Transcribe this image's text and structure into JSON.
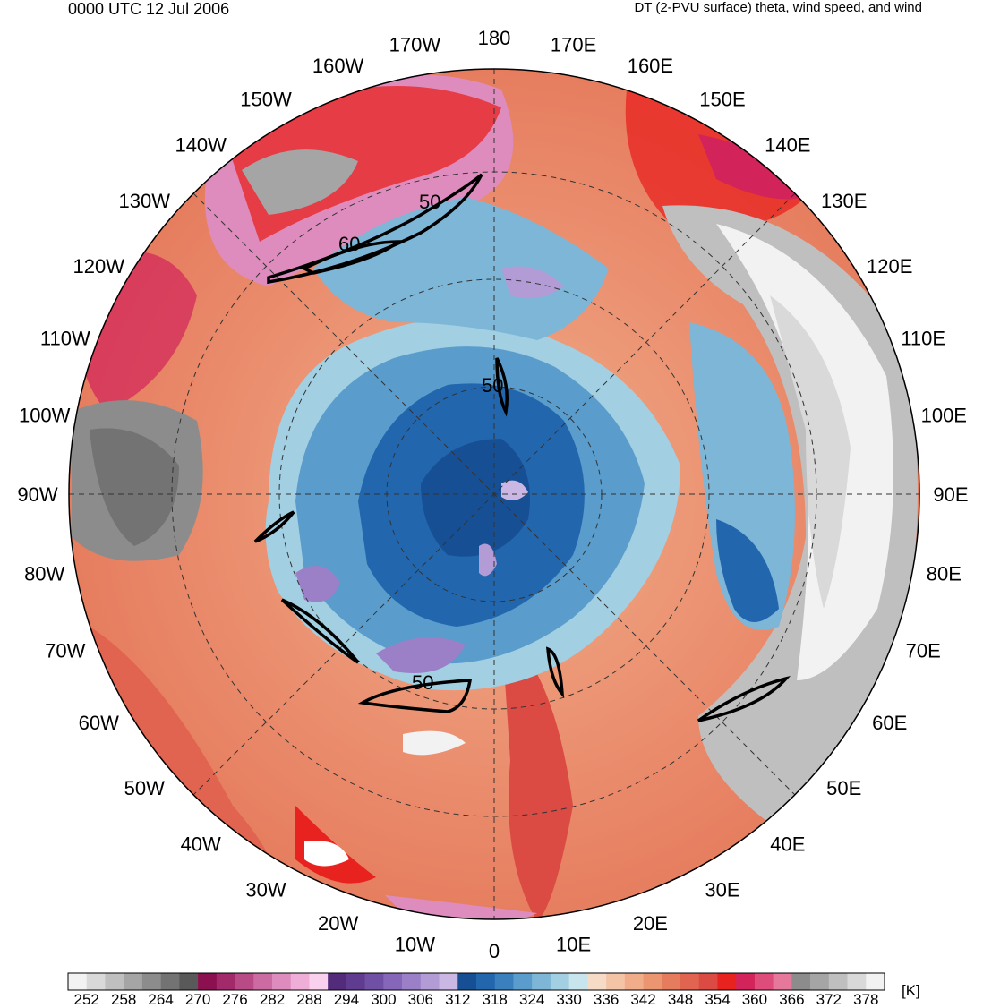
{
  "header": {
    "datetime": "0000 UTC 12 Jul 2006",
    "description": "DT (2-PVU surface) theta, wind speed, and wind"
  },
  "map": {
    "projection": "polar-stereographic-north",
    "longitude_labels": [
      "180",
      "170E",
      "160E",
      "150E",
      "140E",
      "130E",
      "120E",
      "110E",
      "100E",
      "90E",
      "80E",
      "70E",
      "60E",
      "50E",
      "40E",
      "30E",
      "20E",
      "10E",
      "0",
      "10W",
      "20W",
      "30W",
      "40W",
      "50W",
      "60W",
      "70W",
      "80W",
      "90W",
      "100W",
      "110W",
      "120W",
      "130W",
      "140W",
      "150W",
      "160W",
      "170W"
    ],
    "contour_labels": [
      "50",
      "60",
      "50",
      "50"
    ]
  },
  "colorbar": {
    "unit": "[K]",
    "colors": [
      "#f2f2f2",
      "#d9d9d9",
      "#bfbfbf",
      "#a5a5a5",
      "#8c8c8c",
      "#737373",
      "#595959",
      "#8c0f4f",
      "#a32a6a",
      "#b84a86",
      "#cc6ba2",
      "#de8cbd",
      "#eeaed8",
      "#fad0ef",
      "#522b7a",
      "#5f3c90",
      "#7050a4",
      "#8566b8",
      "#9b80c8",
      "#b39bd6",
      "#cbb7e3",
      "#174f95",
      "#2266ae",
      "#3a80bf",
      "#5a9ccb",
      "#7db6d7",
      "#a2cfe2",
      "#c8e4ec",
      "#f6dbc6",
      "#f4c4a6",
      "#f1ad8a",
      "#ec9571",
      "#e67c5e",
      "#e06450",
      "#db4b43",
      "#e8221f",
      "#d2235a",
      "#de4c7b",
      "#e6789b",
      "#8c8c8c",
      "#a5a5a5",
      "#bfbfbf",
      "#d9d9d9",
      "#f2f2f2"
    ],
    "tick_labels": [
      "252",
      "258",
      "264",
      "270",
      "276",
      "282",
      "288",
      "294",
      "300",
      "306",
      "312",
      "318",
      "324",
      "330",
      "336",
      "342",
      "348",
      "354",
      "360",
      "366",
      "372",
      "378"
    ]
  }
}
